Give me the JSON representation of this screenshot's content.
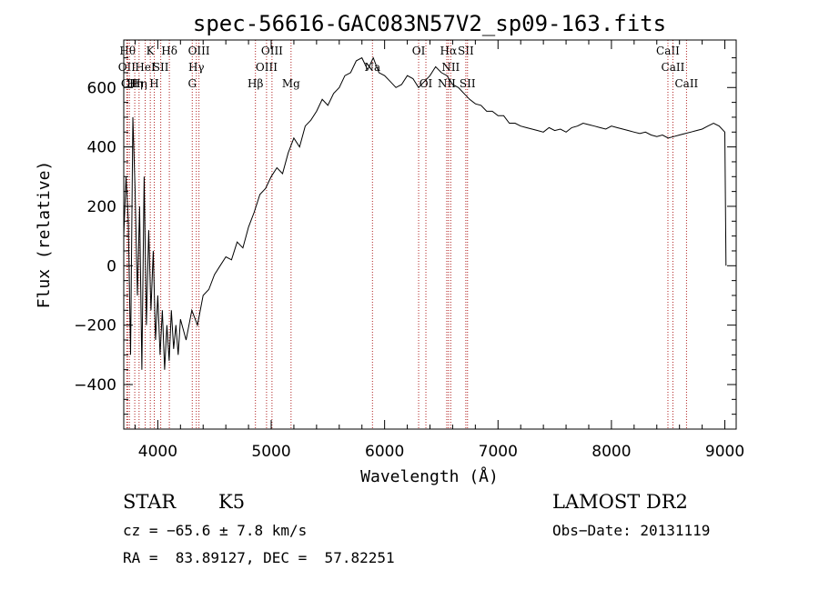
{
  "chart_data": {
    "type": "line",
    "title": "spec-56616-GAC083N57V2_sp09-163.fits",
    "xlabel": "Wavelength (Å)",
    "ylabel": "Flux (relative)",
    "xlim": [
      3700,
      9100
    ],
    "ylim": [
      -550,
      760
    ],
    "x_ticks": [
      4000,
      5000,
      6000,
      7000,
      8000,
      9000
    ],
    "y_ticks": [
      -400,
      -200,
      0,
      200,
      400,
      600
    ],
    "grid": false,
    "series": [
      {
        "color": "#000000",
        "points": [
          [
            3700,
            100
          ],
          [
            3720,
            300
          ],
          [
            3740,
            150
          ],
          [
            3760,
            -300
          ],
          [
            3780,
            500
          ],
          [
            3800,
            250
          ],
          [
            3820,
            -100
          ],
          [
            3840,
            200
          ],
          [
            3860,
            -350
          ],
          [
            3880,
            300
          ],
          [
            3900,
            -200
          ],
          [
            3920,
            120
          ],
          [
            3940,
            -150
          ],
          [
            3960,
            50
          ],
          [
            3980,
            -250
          ],
          [
            4000,
            -100
          ],
          [
            4020,
            -300
          ],
          [
            4040,
            -150
          ],
          [
            4060,
            -350
          ],
          [
            4080,
            -200
          ],
          [
            4100,
            -320
          ],
          [
            4120,
            -150
          ],
          [
            4140,
            -280
          ],
          [
            4160,
            -200
          ],
          [
            4180,
            -300
          ],
          [
            4200,
            -180
          ],
          [
            4250,
            -250
          ],
          [
            4300,
            -150
          ],
          [
            4350,
            -200
          ],
          [
            4400,
            -100
          ],
          [
            4450,
            -80
          ],
          [
            4500,
            -30
          ],
          [
            4550,
            0
          ],
          [
            4600,
            30
          ],
          [
            4650,
            20
          ],
          [
            4700,
            80
          ],
          [
            4750,
            60
          ],
          [
            4800,
            130
          ],
          [
            4850,
            180
          ],
          [
            4900,
            240
          ],
          [
            4950,
            260
          ],
          [
            5000,
            300
          ],
          [
            5050,
            330
          ],
          [
            5100,
            310
          ],
          [
            5150,
            380
          ],
          [
            5200,
            430
          ],
          [
            5250,
            400
          ],
          [
            5300,
            470
          ],
          [
            5350,
            490
          ],
          [
            5400,
            520
          ],
          [
            5450,
            560
          ],
          [
            5500,
            540
          ],
          [
            5550,
            580
          ],
          [
            5600,
            600
          ],
          [
            5650,
            640
          ],
          [
            5700,
            650
          ],
          [
            5750,
            690
          ],
          [
            5800,
            700
          ],
          [
            5850,
            660
          ],
          [
            5900,
            700
          ],
          [
            5950,
            650
          ],
          [
            6000,
            640
          ],
          [
            6050,
            620
          ],
          [
            6100,
            600
          ],
          [
            6150,
            610
          ],
          [
            6200,
            640
          ],
          [
            6250,
            630
          ],
          [
            6300,
            600
          ],
          [
            6350,
            620
          ],
          [
            6400,
            640
          ],
          [
            6450,
            670
          ],
          [
            6500,
            650
          ],
          [
            6550,
            640
          ],
          [
            6600,
            610
          ],
          [
            6650,
            600
          ],
          [
            6700,
            580
          ],
          [
            6750,
            560
          ],
          [
            6800,
            545
          ],
          [
            6850,
            540
          ],
          [
            6900,
            520
          ],
          [
            6950,
            520
          ],
          [
            7000,
            505
          ],
          [
            7050,
            505
          ],
          [
            7100,
            480
          ],
          [
            7150,
            480
          ],
          [
            7200,
            470
          ],
          [
            7250,
            465
          ],
          [
            7300,
            460
          ],
          [
            7350,
            455
          ],
          [
            7400,
            450
          ],
          [
            7450,
            465
          ],
          [
            7500,
            455
          ],
          [
            7550,
            460
          ],
          [
            7600,
            450
          ],
          [
            7650,
            465
          ],
          [
            7700,
            470
          ],
          [
            7750,
            480
          ],
          [
            7800,
            475
          ],
          [
            7850,
            470
          ],
          [
            7900,
            465
          ],
          [
            7950,
            460
          ],
          [
            8000,
            470
          ],
          [
            8050,
            465
          ],
          [
            8100,
            460
          ],
          [
            8150,
            455
          ],
          [
            8200,
            450
          ],
          [
            8250,
            445
          ],
          [
            8300,
            450
          ],
          [
            8350,
            440
          ],
          [
            8400,
            435
          ],
          [
            8450,
            440
          ],
          [
            8500,
            430
          ],
          [
            8550,
            435
          ],
          [
            8600,
            440
          ],
          [
            8650,
            445
          ],
          [
            8700,
            450
          ],
          [
            8750,
            455
          ],
          [
            8800,
            460
          ],
          [
            8850,
            470
          ],
          [
            8900,
            480
          ],
          [
            8950,
            470
          ],
          [
            9000,
            450
          ],
          [
            9010,
            0
          ]
        ]
      }
    ],
    "lines": [
      {
        "wl": 3734,
        "label": "Hθ",
        "row": 1
      },
      {
        "wl": 3727,
        "label": "OII",
        "row": 2
      },
      {
        "wl": 3750,
        "label": "CII",
        "row": 3
      },
      {
        "wl": 3797,
        "label": "Hη",
        "row": 3
      },
      {
        "wl": 3835,
        "label": "Hη",
        "row": 3
      },
      {
        "wl": 3889,
        "label": "HeI",
        "row": 2
      },
      {
        "wl": 3934,
        "label": "K",
        "row": 1
      },
      {
        "wl": 3969,
        "label": "H",
        "row": 3
      },
      {
        "wl": 4026,
        "label": "SII",
        "row": 2
      },
      {
        "wl": 4102,
        "label": "Hδ",
        "row": 1
      },
      {
        "wl": 4304,
        "label": "G",
        "row": 3
      },
      {
        "wl": 4340,
        "label": "Hγ",
        "row": 2
      },
      {
        "wl": 4363,
        "label": "OIII",
        "row": 1
      },
      {
        "wl": 4861,
        "label": "Hβ",
        "row": 3
      },
      {
        "wl": 4959,
        "label": "OIII",
        "row": 2
      },
      {
        "wl": 5007,
        "label": "OIII",
        "row": 1
      },
      {
        "wl": 5175,
        "label": "Mg",
        "row": 3
      },
      {
        "wl": 5893,
        "label": "Na",
        "row": 2
      },
      {
        "wl": 6300,
        "label": "OI",
        "row": 1
      },
      {
        "wl": 6364,
        "label": "OI",
        "row": 3
      },
      {
        "wl": 6548,
        "label": "NII",
        "row": 3
      },
      {
        "wl": 6563,
        "label": "Hα",
        "row": 1
      },
      {
        "wl": 6583,
        "label": "NII",
        "row": 2
      },
      {
        "wl": 6716,
        "label": "SII",
        "row": 1
      },
      {
        "wl": 6731,
        "label": "SII",
        "row": 3
      },
      {
        "wl": 8498,
        "label": "CaII",
        "row": 1
      },
      {
        "wl": 8542,
        "label": "CaII",
        "row": 2
      },
      {
        "wl": 8662,
        "label": "CaII",
        "row": 3
      }
    ]
  },
  "info": {
    "object_class": "STAR",
    "subclass": "K5",
    "survey": "LAMOST DR2",
    "cz": "cz = −65.6 ± 7.8 km/s",
    "obs_date": "Obs−Date: 20131119",
    "coords": "RA =  83.89127, DEC =  57.82251"
  }
}
